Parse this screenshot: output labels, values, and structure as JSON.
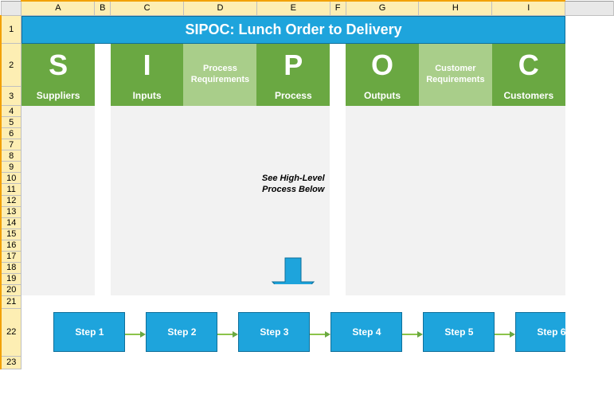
{
  "sheet": {
    "column_labels": [
      "A",
      "B",
      "C",
      "D",
      "E",
      "F",
      "G",
      "H",
      "I"
    ],
    "row_labels": [
      "1",
      "2",
      "3",
      "4",
      "5",
      "6",
      "7",
      "8",
      "9",
      "10",
      "11",
      "12",
      "13",
      "14",
      "15",
      "16",
      "17",
      "18",
      "19",
      "20",
      "21",
      "22",
      "23"
    ],
    "active_cols": [
      "A",
      "B",
      "C",
      "D",
      "E",
      "F",
      "G",
      "H",
      "I"
    ],
    "active_rows": [
      "1",
      "2",
      "3",
      "4",
      "5",
      "6",
      "7",
      "8",
      "9",
      "10",
      "11",
      "12",
      "13",
      "14",
      "15",
      "16",
      "17",
      "18",
      "19",
      "20",
      "21",
      "22",
      "23"
    ],
    "col_widths": {
      "rowhdr": 26,
      "A": 92,
      "B": 20,
      "C": 92,
      "D": 92,
      "E": 92,
      "F": 20,
      "G": 92,
      "H": 92,
      "I": 92,
      "pad": 62
    },
    "row_heights": {
      "colhdr": 18,
      "1": 34,
      "2": 54,
      "3": 22,
      "small": 14,
      "21": 16,
      "22": 60,
      "23": 16
    }
  },
  "title": "SIPOC: Lunch Order to Delivery",
  "columns": {
    "s": {
      "big": "S",
      "sub": "Suppliers"
    },
    "i": {
      "big": "I",
      "sub": "Inputs"
    },
    "procreq": {
      "line1": "Process",
      "line2": "Requirements"
    },
    "p": {
      "big": "P",
      "sub": "Process"
    },
    "o": {
      "big": "O",
      "sub": "Outputs"
    },
    "custreq": {
      "line1": "Customer",
      "line2": "Requirements"
    },
    "c": {
      "big": "C",
      "sub": "Customers"
    }
  },
  "see_text": {
    "line1": "See High-Level",
    "line2": "Process Below"
  },
  "steps": [
    "Step 1",
    "Step 2",
    "Step 3",
    "Step 4",
    "Step 5",
    "Step 6"
  ],
  "colors": {
    "title_bg": "#1ea4dc",
    "title_border": "#0f6f9a",
    "hdr_dark": "#6aa842",
    "hdr_light": "#a9ce8a",
    "graybox": "#f2f2f2",
    "step_bg": "#1ea4dc",
    "step_border": "#0f6f9a",
    "conn_line": "#8bc34a",
    "conn_head": "#6aa842",
    "arrow": "#1ea4dc",
    "grid_hdr_bg": "#e8e8e8",
    "grid_active_bg": "#fdeeb3",
    "grid_active_border": "#f2a100"
  },
  "layout": {
    "step_start_x": 40,
    "step_width": 90,
    "step_gap": 116,
    "conn_len": 20,
    "arrow_w": 56,
    "arrow_h": 60
  }
}
